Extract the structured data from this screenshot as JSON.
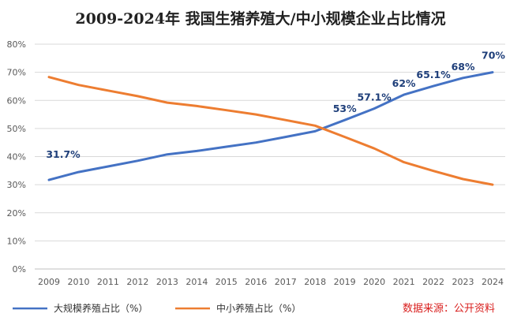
{
  "chart_data": {
    "type": "line",
    "title": "2009-2024年 我国生猪养殖大/中小规模企业占比情况",
    "x": [
      "2009",
      "2010",
      "2011",
      "2012",
      "2013",
      "2014",
      "2015",
      "2016",
      "2017",
      "2018",
      "2019",
      "2020",
      "2021",
      "2022",
      "2023",
      "2024"
    ],
    "ylim": [
      0,
      80
    ],
    "yticks": [
      "0%",
      "10%",
      "20%",
      "30%",
      "40%",
      "50%",
      "60%",
      "70%",
      "80%"
    ],
    "grid": true,
    "legend_position": "bottom-left",
    "series": [
      {
        "name": "大规模养殖占比（%）",
        "color": "#4472c4",
        "values": [
          31.7,
          34.5,
          36.5,
          38.5,
          40.8,
          42.0,
          43.5,
          45.0,
          47.0,
          49.0,
          53.0,
          57.1,
          62.0,
          65.1,
          68.0,
          70.0
        ],
        "labels": [
          "31.7%",
          "",
          "",
          "",
          "",
          "",
          "",
          "",
          "",
          "",
          "53%",
          "57.1%",
          "62%",
          "65.1%",
          "68%",
          "70%"
        ]
      },
      {
        "name": "中小养殖占比（%）",
        "color": "#ed7d31",
        "values": [
          68.3,
          65.5,
          63.5,
          61.5,
          59.2,
          58.0,
          56.5,
          55.0,
          53.0,
          51.0,
          47.0,
          42.9,
          38.0,
          34.9,
          32.0,
          30.0
        ],
        "labels": []
      }
    ],
    "source_note": "数据来源：公开资料"
  }
}
